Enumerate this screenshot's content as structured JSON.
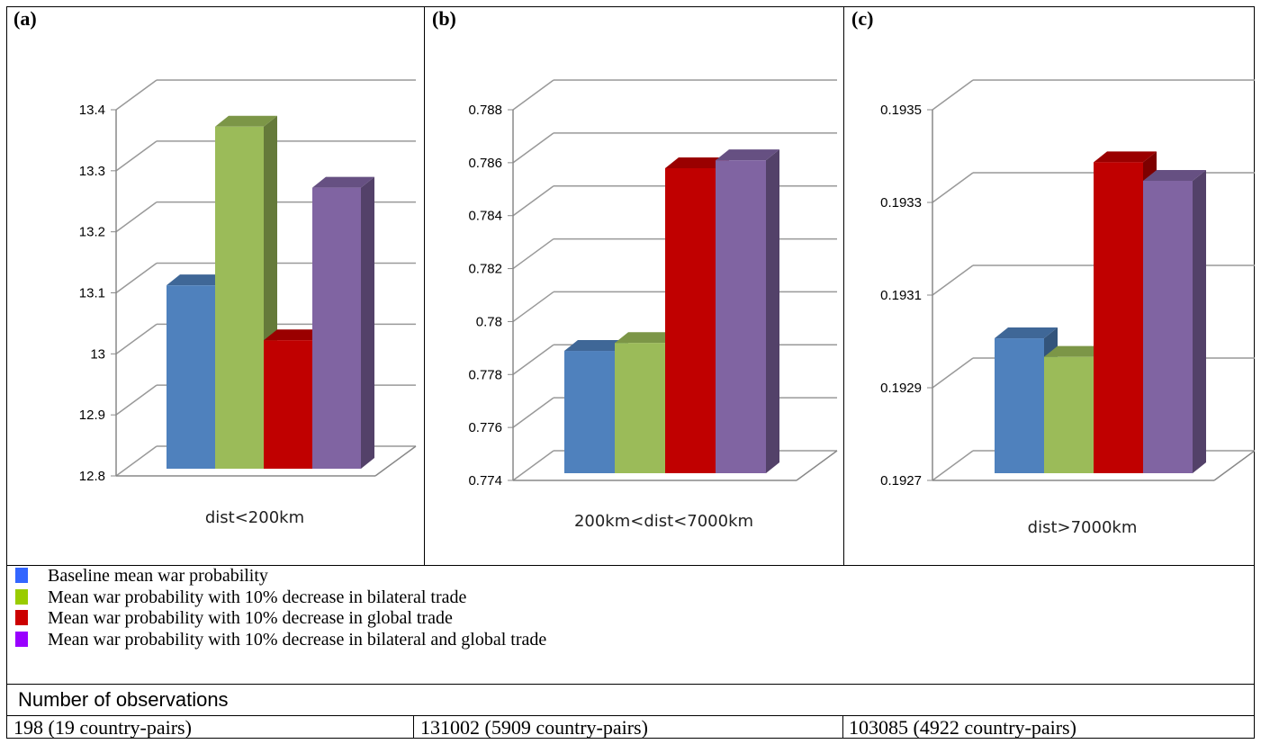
{
  "legend": [
    {
      "label": "Baseline mean war probability",
      "color": "#3366ff"
    },
    {
      "label": "Mean war probability with 10% decrease in bilateral trade",
      "color": "#99cc00"
    },
    {
      "label": "Mean war probability with 10% decrease in global trade",
      "color": "#cc0000"
    },
    {
      "label": "Mean war probability with 10% decrease in bilateral and global trade",
      "color": "#9900ff"
    }
  ],
  "series_colors": [
    "#4f81bd",
    "#9bbb59",
    "#c00000",
    "#8064a2"
  ],
  "observations": {
    "title": "Number of observations",
    "cells": [
      "198 (19 country-pairs)",
      "131002 (5909 country-pairs)",
      "103085 (4922 country-pairs)"
    ]
  },
  "chart_data": [
    {
      "type": "bar",
      "panel": "(a)",
      "categories": [
        "dist<200km"
      ],
      "series": [
        {
          "name": "Baseline mean war probability",
          "values": [
            13.13
          ]
        },
        {
          "name": "Mean war probability with 10% decrease in bilateral trade",
          "values": [
            13.39
          ]
        },
        {
          "name": "Mean war probability with 10% decrease in global trade",
          "values": [
            13.04
          ]
        },
        {
          "name": "Mean war probability with 10% decrease in bilateral and global trade",
          "values": [
            13.29
          ]
        }
      ],
      "ylim": [
        12.8,
        13.4
      ],
      "yticks": [
        "12.8",
        "12.9",
        "13",
        "13.1",
        "13.2",
        "13.3",
        "13.4"
      ],
      "grid": true
    },
    {
      "type": "bar",
      "panel": "(b)",
      "categories": [
        "200km<dist<7000km"
      ],
      "series": [
        {
          "name": "Baseline mean war probability",
          "values": [
            0.7793
          ]
        },
        {
          "name": "Mean war probability with 10% decrease in bilateral trade",
          "values": [
            0.7796
          ]
        },
        {
          "name": "Mean war probability with 10% decrease in global trade",
          "values": [
            0.7862
          ]
        },
        {
          "name": "Mean war probability with 10% decrease in bilateral and global trade",
          "values": [
            0.7865
          ]
        }
      ],
      "ylim": [
        0.774,
        0.788
      ],
      "yticks": [
        "0.774",
        "0.776",
        "0.778",
        "0.78",
        "0.782",
        "0.784",
        "0.786",
        "0.788"
      ],
      "grid": true
    },
    {
      "type": "bar",
      "panel": "(c)",
      "categories": [
        "dist>7000km"
      ],
      "series": [
        {
          "name": "Baseline mean war probability",
          "values": [
            0.19303
          ]
        },
        {
          "name": "Mean war probability with 10% decrease in bilateral trade",
          "values": [
            0.19299
          ]
        },
        {
          "name": "Mean war probability with 10% decrease in global trade",
          "values": [
            0.19341
          ]
        },
        {
          "name": "Mean war probability with 10% decrease in bilateral and global trade",
          "values": [
            0.19337
          ]
        }
      ],
      "ylim": [
        0.1927,
        0.1935
      ],
      "yticks": [
        "0.1927",
        "0.1929",
        "0.1931",
        "0.1933",
        "0.1935"
      ],
      "grid": true
    }
  ]
}
